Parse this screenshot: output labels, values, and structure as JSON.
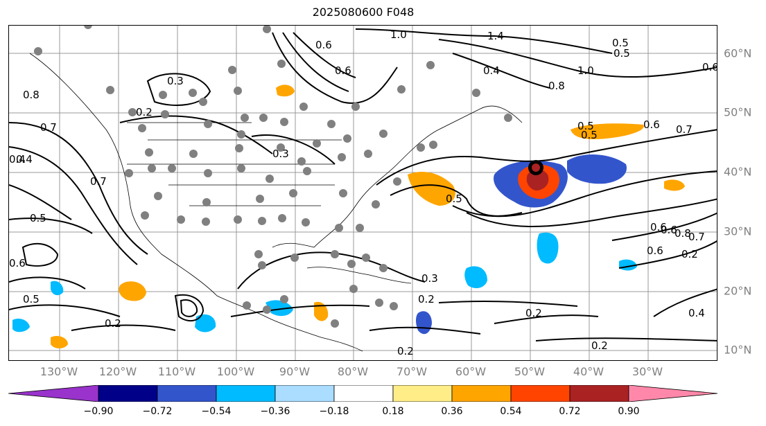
{
  "title": "2025080600 F048",
  "longitude_labels": [
    "130°W",
    "120°W",
    "110°W",
    "100°W",
    "90°W",
    "80°W",
    "70°W",
    "60°W",
    "50°W",
    "40°W",
    "30°W"
  ],
  "latitude_labels": [
    "60°N",
    "50°N",
    "40°N",
    "30°N",
    "20°N",
    "10°N"
  ],
  "colorbar": {
    "tick_labels": [
      "−0.90",
      "−0.72",
      "−0.54",
      "−0.36",
      "−0.18",
      "0.18",
      "0.36",
      "0.54",
      "0.72",
      "0.90"
    ],
    "colors": [
      "#9933cc",
      "#000088",
      "#3355cc",
      "#00bbff",
      "#aaddff",
      "#ffffff",
      "#ffee88",
      "#ffa500",
      "#ff4400",
      "#aa2222",
      "#ff88aa"
    ]
  },
  "contour_labels": [
    "0.5",
    "0.6",
    "0.7",
    "1.0",
    "1.4",
    "0.8",
    "0.3",
    "0.4",
    "0.2",
    "0.5",
    "0.6",
    "0.7",
    "0.8",
    "0.4",
    "0.5",
    "0.6",
    "0.3",
    "0.2",
    "0.5",
    "0.6",
    "0.7",
    "0.6",
    "0.5",
    "0.2",
    "0.2",
    "0.2",
    "0.3",
    "0.4",
    "0.6",
    "0.7",
    "0.2",
    "0.4",
    "0.2",
    "0.5",
    "0.6",
    "0.8",
    "1.0",
    "0.5",
    "0.6"
  ],
  "colors": {
    "map_border": "#000000",
    "grid": "#999999",
    "station_marker": "#808080",
    "axis_label": "#808080"
  }
}
